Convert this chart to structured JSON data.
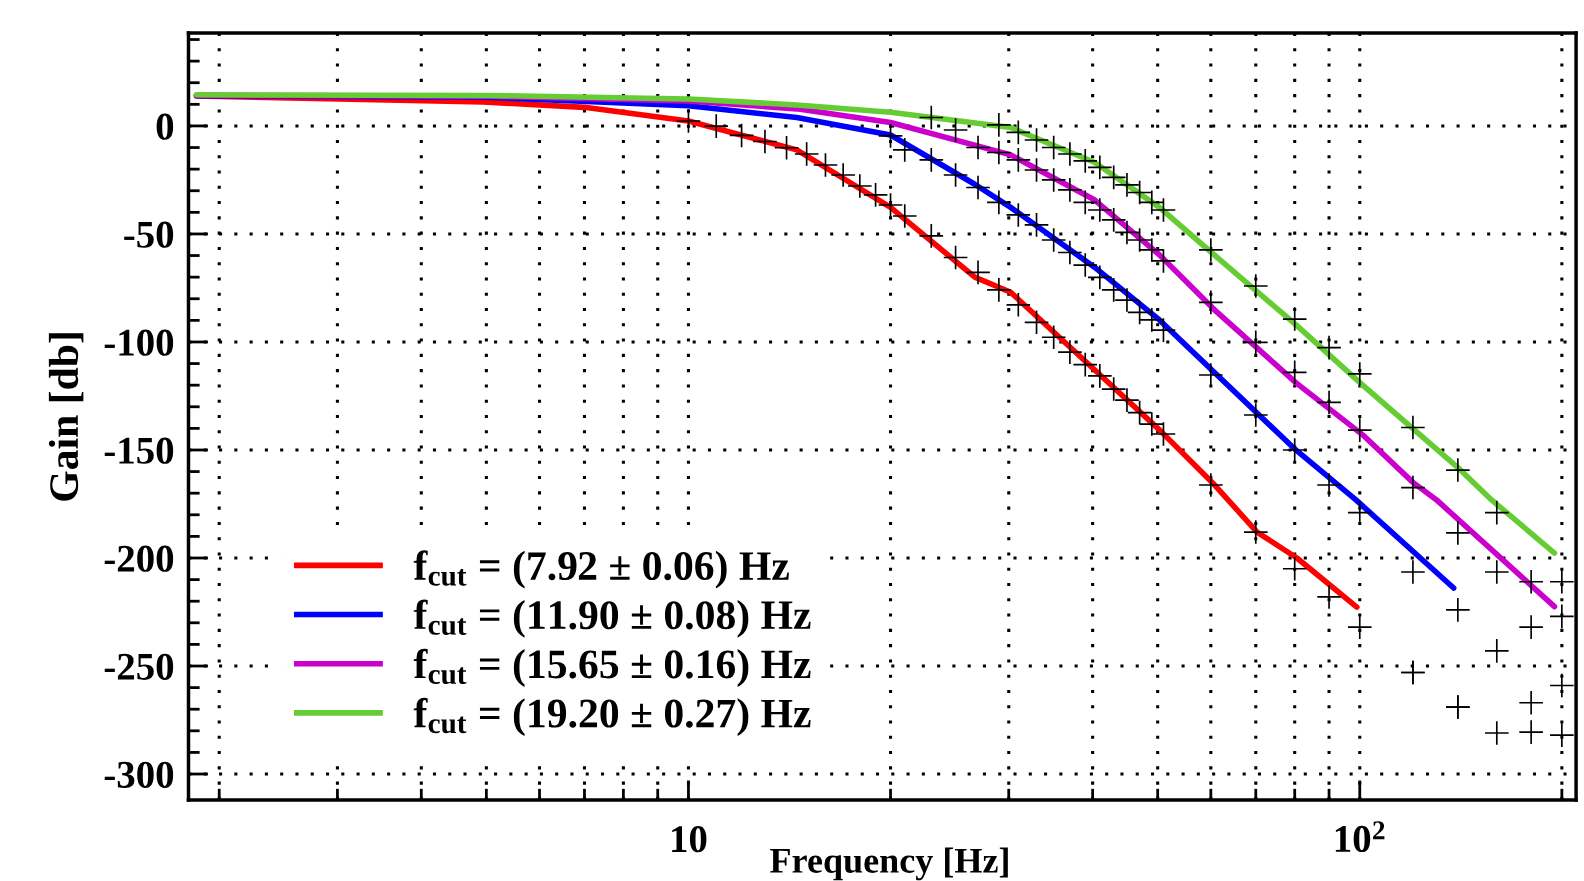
{
  "chart_data": {
    "type": "line",
    "xlabel": "Frequency [Hz]",
    "ylabel": "Gain [db]",
    "log": "x",
    "grid": true,
    "legend": "bottom left",
    "xlim": [
      1.8,
      210
    ],
    "ylim": [
      -312,
      43
    ],
    "xticks": [
      {
        "value": 2,
        "label": null
      },
      {
        "value": 3,
        "label": null
      },
      {
        "value": 4,
        "label": null
      },
      {
        "value": 5,
        "label": null
      },
      {
        "value": 6,
        "label": null
      },
      {
        "value": 7,
        "label": null
      },
      {
        "value": 8,
        "label": null
      },
      {
        "value": 9,
        "label": null
      },
      {
        "value": 10,
        "label": "10"
      },
      {
        "value": 20,
        "label": null
      },
      {
        "value": 30,
        "label": null
      },
      {
        "value": 40,
        "label": null
      },
      {
        "value": 50,
        "label": null
      },
      {
        "value": 60,
        "label": null
      },
      {
        "value": 70,
        "label": null
      },
      {
        "value": 80,
        "label": null
      },
      {
        "value": 90,
        "label": null
      },
      {
        "value": 100,
        "label": "10$^{2}$"
      },
      {
        "value": 200,
        "label": null
      }
    ],
    "yticks": [
      -300,
      {
        "value": -290,
        "label": null
      },
      {
        "value": -280,
        "label": null
      },
      {
        "value": -270,
        "label": null
      },
      {
        "value": -260,
        "label": null
      },
      -250,
      {
        "value": -240,
        "label": null
      },
      {
        "value": -230,
        "label": null
      },
      {
        "value": -220,
        "label": null
      },
      {
        "value": -210,
        "label": null
      },
      -200,
      {
        "value": -190,
        "label": null
      },
      {
        "value": -180,
        "label": null
      },
      {
        "value": -170,
        "label": null
      },
      {
        "value": -160,
        "label": null
      },
      -150,
      {
        "value": -140,
        "label": null
      },
      {
        "value": -130,
        "label": null
      },
      {
        "value": -120,
        "label": null
      },
      {
        "value": -110,
        "label": null
      },
      -100,
      {
        "value": -90,
        "label": null
      },
      {
        "value": -80,
        "label": null
      },
      {
        "value": -70,
        "label": null
      },
      {
        "value": -60,
        "label": null
      },
      -50,
      {
        "value": -40,
        "label": null
      },
      {
        "value": -30,
        "label": null
      },
      {
        "value": -20,
        "label": null
      },
      {
        "value": -10,
        "label": null
      },
      0,
      {
        "value": 10,
        "label": null
      },
      {
        "value": 20,
        "label": null
      },
      {
        "value": 30,
        "label": null
      },
      {
        "value": 40,
        "label": null
      }
    ],
    "series": [
      {
        "name": "f$_{cut}$ = (7.92 ± 0.06) Hz",
        "color": "#ff0000",
        "x": [
          1.85,
          4.95,
          7.0,
          10,
          14.5,
          20,
          26.7,
          30.2,
          40.3,
          50.3,
          60.7,
          70.3,
          80.6,
          99
        ],
        "values": [
          13.9,
          11.1,
          8.6,
          2.3,
          -11.1,
          -37.7,
          -70,
          -77,
          -113,
          -140.7,
          -166,
          -188,
          -200,
          -222.7
        ]
      },
      {
        "name": "f$_{cut}$ = (11.90 ± 0.08) Hz",
        "color": "#0000ff",
        "x": [
          1.85,
          5,
          10,
          14.5,
          20,
          26.7,
          30.2,
          40.3,
          50.3,
          60.7,
          80.3,
          98.6,
          138
        ],
        "values": [
          14,
          13.3,
          9.3,
          3.9,
          -4.2,
          -27,
          -37.7,
          -65.5,
          -89.8,
          -114,
          -150,
          -173,
          -213.9
        ]
      },
      {
        "name": "f$_{cut}$ = (15.65 ± 0.16) Hz",
        "color": "#cc00cc",
        "x": [
          1.85,
          5,
          10,
          14.5,
          20,
          30.2,
          40.3,
          50.3,
          60.7,
          80.3,
          101,
          120,
          130,
          195
        ],
        "values": [
          14.2,
          13.8,
          11.5,
          7.9,
          1.6,
          -13.4,
          -34.3,
          -59.7,
          -85,
          -118.8,
          -143,
          -165,
          -173,
          -222.5
        ]
      },
      {
        "name": "f$_{cut}$ = (19.20 ± 0.27) Hz",
        "color": "#66cc33",
        "x": [
          1.85,
          5,
          10,
          14.5,
          20,
          30.2,
          40.3,
          50.3,
          60.7,
          80.3,
          101,
          141,
          157,
          195
        ],
        "values": [
          14.4,
          14.1,
          12.5,
          9.7,
          6.3,
          -0.7,
          -16.9,
          -37.7,
          -59.7,
          -92,
          -120,
          -159,
          -173,
          -197.7
        ]
      },
      {
        "type": "scatter",
        "color": "#000000",
        "marker": "cross",
        "x": [
          10,
          11,
          12,
          13,
          14,
          15,
          16,
          17,
          18,
          19,
          20,
          21,
          23,
          25,
          27,
          29,
          31,
          33,
          35,
          37,
          39,
          41,
          43,
          45,
          47,
          49,
          51,
          60,
          70,
          80,
          90,
          100,
          20,
          21,
          23,
          25,
          27,
          29,
          31,
          33,
          35,
          37,
          39,
          41,
          43,
          45,
          47,
          49,
          51,
          60,
          70,
          80,
          90,
          100,
          23,
          25,
          27,
          29,
          31,
          33,
          35,
          37,
          39,
          41,
          43,
          45,
          47,
          49,
          51,
          60,
          70,
          80,
          90,
          100,
          120,
          29,
          31,
          33,
          35,
          37,
          39,
          41,
          43,
          45,
          47,
          49,
          51,
          60,
          70,
          80,
          90,
          100,
          120,
          140,
          160,
          140,
          120,
          140,
          160,
          180,
          200,
          200,
          180,
          120,
          140,
          160,
          180,
          200,
          120,
          140,
          160,
          180,
          200
        ],
        "values": [
          2.3,
          -0.1,
          -4.4,
          -7.2,
          -10.1,
          -13,
          -18.1,
          -22.7,
          -27.8,
          -31.9,
          -36.6,
          -41.7,
          -50.9,
          -60.9,
          -67.8,
          -75.9,
          -82.8,
          -90.9,
          -97.8,
          -104.7,
          -110.5,
          -115.7,
          -121.8,
          -126.9,
          -132.7,
          -138,
          -142.6,
          -166.2,
          -188,
          -205,
          -218,
          -232,
          -4.6,
          -11.1,
          -15.7,
          -22.7,
          -28.5,
          -35.4,
          -41.2,
          -45.8,
          -52.8,
          -58.6,
          -64.4,
          -70.1,
          -75.9,
          -80.6,
          -86.3,
          -89.8,
          -94.5,
          -115.3,
          -133.8,
          -150,
          -166.2,
          -179,
          3.9,
          -1.9,
          -10,
          -12.3,
          -15.7,
          -20.4,
          -25,
          -29.6,
          -35.4,
          -38.9,
          -43.5,
          -49.3,
          -52.8,
          -57.4,
          -62.5,
          -81.7,
          -100.2,
          -114.1,
          -128,
          -140.8,
          -167.4,
          0.5,
          -3,
          -6.5,
          -10,
          -13,
          -16.2,
          -19.2,
          -23.8,
          -27.3,
          -30.8,
          -35.4,
          -38.9,
          -57.4,
          -74.1,
          -89.4,
          -102.6,
          -114.8,
          -139.6,
          -159.3,
          -179,
          -188.4,
          -206.5,
          -224,
          -206.5,
          -211,
          -211,
          -227,
          -232,
          -253,
          -269,
          -243,
          -267,
          -259,
          -253,
          -269,
          -281,
          -280.6,
          -282
        ]
      }
    ]
  }
}
